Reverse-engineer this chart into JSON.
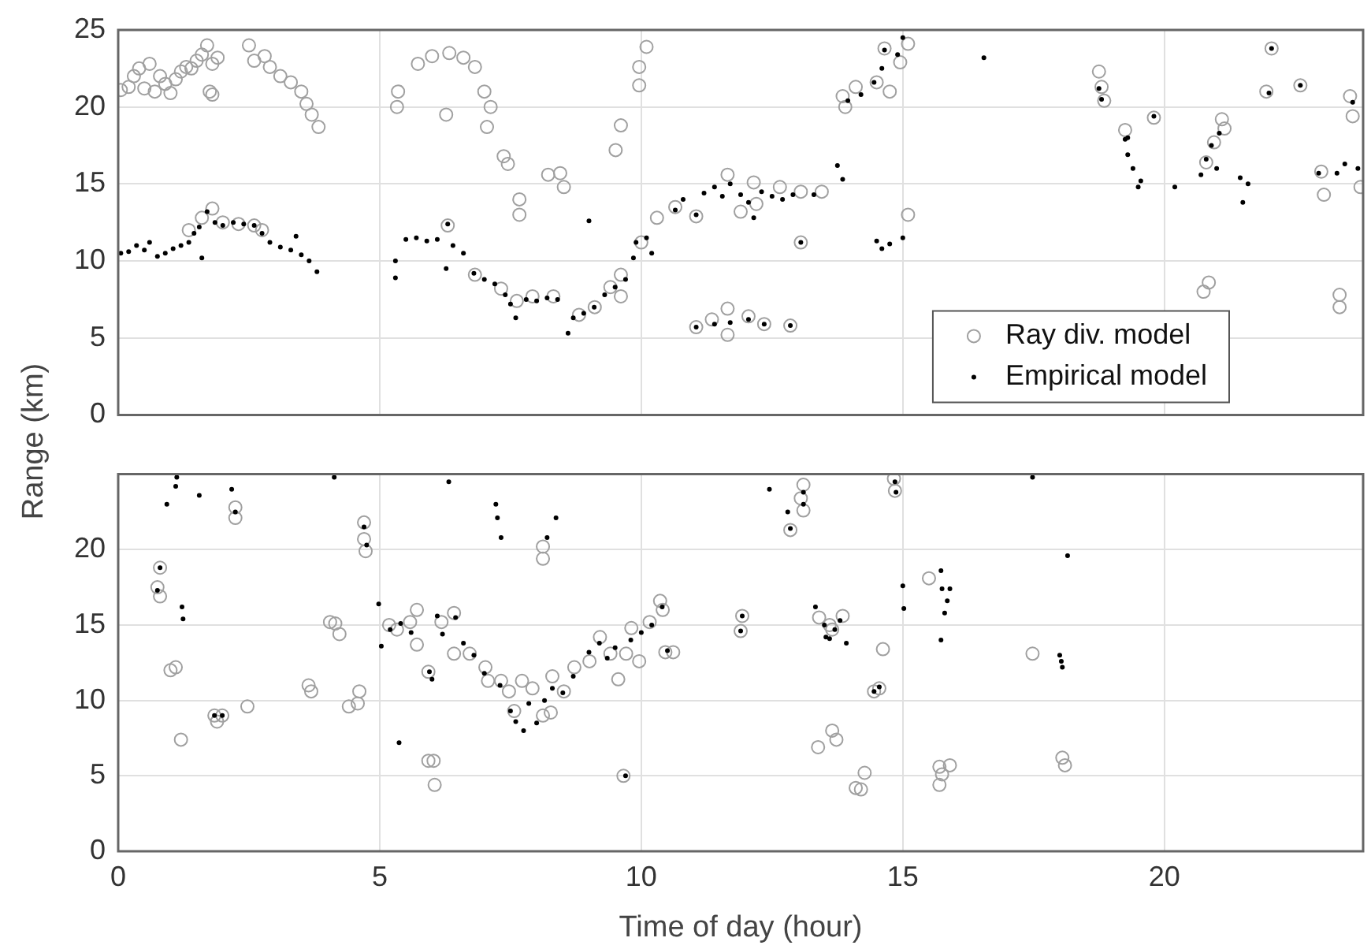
{
  "chart_data": [
    {
      "type": "scatter",
      "ylabel": "Range (km)",
      "xlim": [
        0,
        23.8
      ],
      "xticks": [
        0,
        5,
        10,
        15,
        20
      ],
      "ylim": [
        0,
        25
      ],
      "yticks": [
        0,
        5,
        10,
        15,
        20,
        25
      ],
      "grid": true,
      "tick_labels": "y",
      "legend": "bottom right",
      "marker": "circle",
      "series": [
        {
          "name": "Ray div. model",
          "color": "#a0a0a0",
          "x": [
            0.05,
            0.2,
            0.3,
            0.4,
            0.5,
            0.6,
            0.7,
            0.8,
            0.9,
            1.0,
            1.1,
            1.2,
            1.3,
            1.4,
            1.5,
            1.6,
            1.7,
            1.75,
            1.8,
            1.9,
            1.8,
            1.35,
            1.6,
            1.8,
            2.0,
            2.3,
            2.6,
            2.75,
            2.5,
            2.6,
            2.8,
            2.9,
            3.1,
            3.3,
            3.5,
            3.6,
            3.7,
            3.83,
            5.33,
            5.35,
            5.73,
            6.0,
            6.33,
            6.6,
            6.82,
            7.0,
            7.12,
            7.05,
            6.27,
            7.37,
            7.45,
            7.67,
            7.67,
            8.22,
            8.52,
            8.45,
            9.51,
            9.61,
            9.96,
            10.1,
            9.96,
            6.3,
            6.82,
            7.32,
            7.62,
            7.92,
            8.32,
            8.81,
            9.11,
            9.41,
            9.61,
            9.61,
            10.0,
            10.3,
            10.65,
            11.05,
            11.65,
            12.15,
            12.65,
            13.05,
            13.45,
            13.05,
            12.2,
            11.9,
            11.05,
            11.35,
            11.65,
            11.65,
            12.05,
            12.35,
            12.85,
            13.9,
            13.85,
            14.1,
            14.5,
            14.65,
            14.75,
            14.95,
            15.1,
            15.1,
            18.75,
            18.8,
            18.85,
            19.25,
            19.8,
            20.75,
            20.85,
            20.8,
            20.95,
            21.1,
            21.15,
            21.95,
            22.05,
            22.6,
            23.0,
            23.05,
            23.35,
            23.35,
            23.55,
            23.6,
            23.75
          ],
          "values": [
            21.1,
            21.3,
            22.0,
            22.5,
            21.2,
            22.8,
            21.0,
            22.0,
            21.5,
            20.9,
            21.8,
            22.3,
            22.6,
            22.5,
            23.0,
            23.4,
            24.0,
            21.0,
            22.8,
            23.2,
            20.8,
            12.0,
            12.8,
            13.4,
            12.5,
            12.4,
            12.3,
            12.0,
            24.0,
            23.0,
            23.3,
            22.6,
            22.0,
            21.6,
            21.0,
            20.2,
            19.5,
            18.7,
            20.0,
            21.0,
            22.8,
            23.3,
            23.5,
            23.2,
            22.6,
            21.0,
            20.0,
            18.7,
            19.5,
            16.8,
            16.3,
            14.0,
            13.0,
            15.6,
            14.8,
            15.7,
            17.2,
            18.8,
            22.6,
            23.9,
            21.4,
            12.3,
            9.1,
            8.2,
            7.4,
            7.7,
            7.7,
            6.5,
            7.0,
            8.3,
            9.1,
            7.7,
            11.2,
            12.8,
            13.5,
            12.9,
            15.6,
            15.1,
            14.8,
            14.5,
            14.5,
            11.2,
            13.7,
            13.2,
            5.7,
            6.2,
            6.9,
            5.2,
            6.4,
            5.9,
            5.8,
            20.0,
            20.7,
            21.3,
            21.6,
            23.8,
            21.0,
            22.9,
            24.1,
            13.0,
            22.3,
            21.3,
            20.4,
            18.5,
            19.3,
            8.0,
            8.6,
            16.4,
            17.7,
            19.2,
            18.6,
            21.0,
            23.8,
            21.4,
            15.8,
            14.3,
            7.8,
            7.0,
            20.7,
            19.4,
            14.8
          ]
        },
        {
          "name": "Empirical model",
          "color": "#000000",
          "x": [
            0.05,
            0.2,
            0.35,
            0.5,
            0.6,
            0.75,
            0.9,
            1.05,
            1.2,
            1.35,
            1.45,
            1.55,
            1.6,
            1.7,
            1.85,
            2.0,
            2.2,
            2.4,
            2.6,
            2.75,
            2.9,
            3.1,
            3.3,
            3.4,
            3.5,
            3.65,
            3.8,
            5.3,
            5.3,
            5.5,
            5.7,
            5.9,
            6.1,
            6.3,
            6.27,
            6.4,
            6.6,
            6.8,
            7.0,
            7.2,
            7.4,
            7.5,
            7.6,
            7.8,
            8.0,
            8.2,
            8.4,
            8.6,
            8.7,
            8.9,
            9.0,
            9.1,
            9.3,
            9.5,
            9.7,
            9.85,
            9.9,
            10.1,
            10.2,
            10.65,
            10.8,
            11.05,
            11.2,
            11.4,
            11.55,
            11.7,
            11.9,
            12.05,
            12.15,
            12.3,
            12.5,
            12.7,
            12.9,
            13.05,
            13.3,
            11.05,
            11.4,
            11.7,
            12.05,
            12.35,
            12.85,
            13.75,
            13.85,
            13.95,
            14.2,
            14.45,
            14.6,
            14.65,
            14.9,
            15.0,
            14.5,
            14.6,
            14.75,
            15.0,
            16.55,
            18.75,
            18.8,
            19.3,
            19.3,
            19.4,
            19.55,
            19.5,
            19.25,
            19.8,
            20.2,
            20.7,
            20.8,
            20.9,
            21.05,
            21.0,
            21.45,
            21.5,
            21.6,
            22.0,
            22.05,
            22.6,
            22.95,
            23.3,
            23.45,
            23.6,
            23.7
          ],
          "values": [
            10.5,
            10.6,
            11.0,
            10.7,
            11.2,
            10.3,
            10.5,
            10.8,
            11.0,
            11.2,
            11.8,
            12.2,
            10.2,
            13.2,
            12.5,
            12.3,
            12.5,
            12.4,
            12.3,
            11.8,
            11.2,
            10.9,
            10.7,
            11.6,
            10.4,
            10.0,
            9.3,
            10.0,
            8.9,
            11.4,
            11.5,
            11.3,
            11.4,
            12.4,
            9.5,
            11.0,
            10.5,
            9.2,
            8.8,
            8.5,
            7.8,
            7.2,
            6.3,
            7.5,
            7.4,
            7.6,
            7.5,
            5.3,
            6.3,
            6.6,
            12.6,
            7.0,
            7.8,
            8.3,
            8.8,
            10.2,
            11.2,
            11.5,
            10.5,
            13.3,
            14.0,
            13.0,
            14.4,
            14.8,
            14.2,
            15.0,
            14.3,
            13.8,
            12.8,
            14.5,
            14.2,
            14.0,
            14.3,
            11.2,
            14.3,
            5.7,
            5.9,
            6.0,
            6.2,
            5.9,
            5.8,
            16.2,
            15.3,
            20.4,
            20.8,
            21.6,
            22.5,
            23.7,
            23.4,
            24.5,
            11.3,
            10.8,
            11.1,
            11.5,
            23.2,
            21.2,
            20.5,
            18.0,
            16.9,
            16.0,
            15.2,
            14.8,
            17.9,
            19.4,
            14.8,
            15.6,
            16.6,
            17.5,
            18.3,
            16.0,
            15.4,
            13.8,
            15.0,
            20.9,
            23.8,
            21.4,
            15.7,
            15.7,
            16.3,
            20.3,
            16.0
          ]
        }
      ]
    },
    {
      "type": "scatter",
      "xlabel": "Time of day (hour)",
      "xlim": [
        0,
        23.8
      ],
      "xticks": [
        0,
        5,
        10,
        15,
        20
      ],
      "ylim": [
        0,
        25
      ],
      "yticks": [
        0,
        5,
        10,
        15,
        20
      ],
      "grid": true,
      "marker": "circle",
      "series": [
        {
          "color": "#a0a0a0",
          "x": [
            0.75,
            0.8,
            0.8,
            1.0,
            1.1,
            1.2,
            1.84,
            1.89,
            1.99,
            2.24,
            2.24,
            2.47,
            3.64,
            3.69,
            4.05,
            4.15,
            4.23,
            4.41,
            4.61,
            4.58,
            4.7,
            4.7,
            4.73,
            5.18,
            5.33,
            5.58,
            5.71,
            5.71,
            5.93,
            6.03,
            6.05,
            5.93,
            6.18,
            6.42,
            6.42,
            6.72,
            7.02,
            7.07,
            7.32,
            7.47,
            7.57,
            7.72,
            7.92,
            8.12,
            8.12,
            8.12,
            8.27,
            8.3,
            8.52,
            8.72,
            9.01,
            9.21,
            9.41,
            9.56,
            9.66,
            9.71,
            9.81,
            9.96,
            10.16,
            10.36,
            10.41,
            10.46,
            10.61,
            11.93,
            11.9,
            13.1,
            13.1,
            13.05,
            12.85,
            13.4,
            13.6,
            13.85,
            13.65,
            14.62,
            14.45,
            14.55,
            13.65,
            13.73,
            13.38,
            14.27,
            14.1,
            14.2,
            14.83,
            14.85,
            15.5,
            15.7,
            15.9,
            15.75,
            15.7,
            17.48,
            18.05,
            18.1
          ],
          "values": [
            17.5,
            18.8,
            16.9,
            12.0,
            12.2,
            7.4,
            9.0,
            8.6,
            9.0,
            22.8,
            22.1,
            9.6,
            11.0,
            10.6,
            15.2,
            15.1,
            14.4,
            9.6,
            10.6,
            9.8,
            21.8,
            20.7,
            19.9,
            15.0,
            14.7,
            15.2,
            16.0,
            13.7,
            6.0,
            6.0,
            4.4,
            11.9,
            15.2,
            15.8,
            13.1,
            13.1,
            12.2,
            11.3,
            11.3,
            10.6,
            9.3,
            11.3,
            10.8,
            19.4,
            20.2,
            9.0,
            9.2,
            11.6,
            10.6,
            12.2,
            12.6,
            14.2,
            13.1,
            11.4,
            5.0,
            13.1,
            14.8,
            12.6,
            15.2,
            16.6,
            16.0,
            13.2,
            13.2,
            15.6,
            14.6,
            24.3,
            22.6,
            23.4,
            21.3,
            15.5,
            15.0,
            15.6,
            14.7,
            13.4,
            10.6,
            10.8,
            8.0,
            7.4,
            6.9,
            5.2,
            4.2,
            4.1,
            24.7,
            23.9,
            18.1,
            5.6,
            5.7,
            5.1,
            4.4,
            13.1,
            6.2,
            5.7
          ]
        },
        {
          "color": "#000000",
          "x": [
            1.12,
            1.1,
            0.93,
            1.55,
            1.22,
            1.24,
            2.17,
            4.13,
            4.98,
            5.03,
            5.37,
            6.32,
            7.22,
            7.25,
            7.32,
            8.37,
            8.2,
            0.75,
            0.8,
            1.84,
            1.99,
            2.24,
            4.7,
            4.75,
            5.2,
            5.4,
            5.6,
            5.95,
            6.0,
            6.1,
            6.2,
            6.45,
            6.6,
            6.8,
            7.0,
            7.3,
            7.5,
            7.6,
            7.75,
            7.85,
            8.0,
            8.15,
            8.3,
            8.5,
            8.7,
            9.0,
            9.2,
            9.35,
            9.5,
            9.7,
            9.8,
            10.0,
            10.2,
            10.4,
            10.5,
            12.45,
            12.85,
            13.1,
            13.1,
            12.8,
            11.93,
            11.9,
            13.33,
            13.5,
            13.7,
            13.8,
            13.6,
            13.53,
            13.92,
            14.45,
            14.55,
            14.85,
            14.87,
            15.0,
            15.02,
            15.73,
            15.75,
            15.85,
            15.8,
            15.73,
            15.9,
            17.48,
            18.15,
            18.0,
            18.03,
            18.05
          ],
          "values": [
            24.8,
            24.2,
            23.0,
            23.6,
            16.2,
            15.4,
            24.0,
            24.8,
            16.4,
            13.6,
            7.2,
            24.5,
            23.0,
            22.1,
            20.8,
            22.1,
            20.8,
            17.3,
            18.8,
            9.0,
            9.0,
            22.5,
            21.5,
            20.3,
            14.7,
            15.1,
            14.5,
            11.9,
            11.4,
            15.6,
            14.4,
            15.5,
            13.8,
            13.0,
            11.8,
            11.0,
            9.3,
            8.6,
            8.0,
            9.8,
            8.5,
            10.0,
            10.8,
            10.5,
            11.6,
            13.2,
            13.8,
            12.8,
            13.5,
            5.0,
            14.0,
            14.5,
            15.0,
            16.2,
            13.3,
            24.0,
            21.4,
            23.0,
            23.8,
            22.5,
            15.6,
            14.6,
            16.2,
            15.0,
            14.7,
            15.3,
            14.1,
            14.2,
            13.8,
            10.6,
            10.9,
            24.5,
            23.8,
            17.6,
            16.1,
            18.6,
            17.4,
            16.6,
            15.8,
            14.0,
            17.4,
            24.8,
            19.6,
            13.0,
            12.6,
            12.2
          ]
        }
      ]
    }
  ]
}
